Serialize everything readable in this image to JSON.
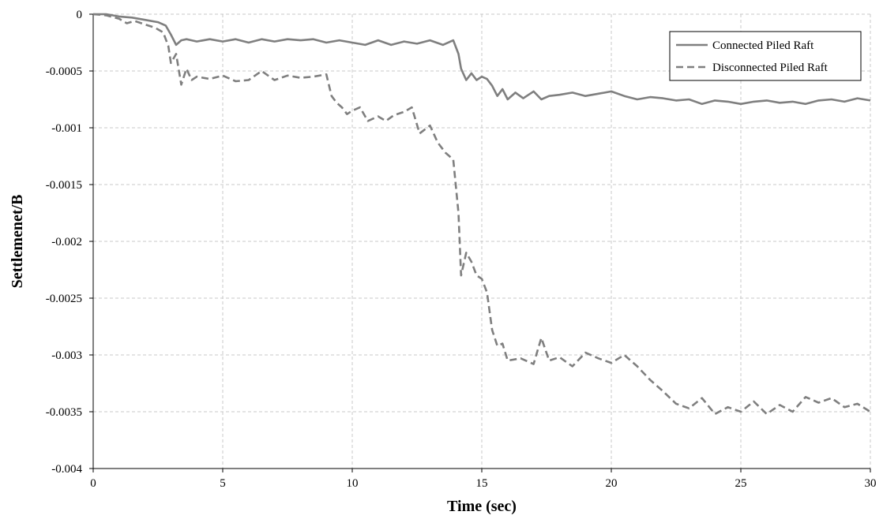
{
  "chart_data": {
    "type": "line",
    "title": "",
    "xlabel": "Time (sec)",
    "ylabel": "Settlemenet/B",
    "xlim": [
      0,
      30
    ],
    "ylim": [
      -0.004,
      0
    ],
    "xticks": [
      0,
      5,
      10,
      15,
      20,
      25,
      30
    ],
    "xtick_labels": [
      "0",
      "5",
      "10",
      "15",
      "20",
      "25",
      "30"
    ],
    "yticks": [
      0,
      -0.0005,
      -0.001,
      -0.0015,
      -0.002,
      -0.0025,
      -0.003,
      -0.0035,
      -0.004
    ],
    "ytick_labels": [
      "0",
      "-0.0005",
      "-0.001",
      "-0.0015",
      "-0.002",
      "-0.0025",
      "-0.003",
      "-0.0035",
      "-0.004"
    ],
    "grid": true,
    "legend_position": "top-right",
    "series": [
      {
        "name": "Connected Piled Raft",
        "style": "solid",
        "color": "#7f7f7f",
        "x": [
          0,
          0.5,
          1.0,
          1.5,
          2.0,
          2.5,
          2.8,
          3.0,
          3.2,
          3.4,
          3.6,
          3.8,
          4.0,
          4.5,
          5.0,
          5.5,
          6.0,
          6.5,
          7.0,
          7.5,
          8.0,
          8.5,
          9.0,
          9.5,
          10.0,
          10.5,
          11.0,
          11.5,
          12.0,
          12.5,
          13.0,
          13.5,
          13.9,
          14.1,
          14.2,
          14.4,
          14.6,
          14.8,
          15.0,
          15.2,
          15.4,
          15.6,
          15.8,
          16.0,
          16.3,
          16.6,
          17.0,
          17.3,
          17.6,
          18.0,
          18.5,
          19.0,
          19.5,
          20.0,
          20.5,
          21.0,
          21.5,
          22.0,
          22.5,
          23.0,
          23.5,
          24.0,
          24.5,
          25.0,
          25.5,
          26.0,
          26.5,
          27.0,
          27.5,
          28.0,
          28.5,
          29.0,
          29.5,
          30.0
        ],
        "y": [
          0,
          0,
          -2e-05,
          -3e-05,
          -5e-05,
          -7e-05,
          -0.0001,
          -0.00018,
          -0.00027,
          -0.00023,
          -0.00022,
          -0.00023,
          -0.00024,
          -0.00022,
          -0.00024,
          -0.00022,
          -0.00025,
          -0.00022,
          -0.00024,
          -0.00022,
          -0.00023,
          -0.00022,
          -0.00025,
          -0.00023,
          -0.00025,
          -0.00027,
          -0.00023,
          -0.00027,
          -0.00024,
          -0.00026,
          -0.00023,
          -0.00027,
          -0.00023,
          -0.00035,
          -0.00048,
          -0.00058,
          -0.00052,
          -0.00058,
          -0.00055,
          -0.00057,
          -0.00063,
          -0.00072,
          -0.00066,
          -0.00075,
          -0.00069,
          -0.00074,
          -0.00068,
          -0.00075,
          -0.00072,
          -0.00071,
          -0.00069,
          -0.00072,
          -0.0007,
          -0.00068,
          -0.00072,
          -0.00075,
          -0.00073,
          -0.00074,
          -0.00076,
          -0.00075,
          -0.00079,
          -0.00076,
          -0.00077,
          -0.00079,
          -0.00077,
          -0.00076,
          -0.00078,
          -0.00077,
          -0.00079,
          -0.00076,
          -0.00075,
          -0.00077,
          -0.00074,
          -0.00076
        ]
      },
      {
        "name": "Disconnected Piled Raft",
        "style": "dashed",
        "color": "#7f7f7f",
        "x": [
          0,
          0.5,
          1.0,
          1.3,
          1.6,
          2.0,
          2.4,
          2.7,
          2.9,
          3.0,
          3.2,
          3.4,
          3.6,
          3.8,
          4.0,
          4.5,
          5.0,
          5.5,
          6.0,
          6.5,
          7.0,
          7.5,
          8.0,
          8.5,
          9.0,
          9.2,
          9.4,
          9.6,
          9.8,
          10.0,
          10.3,
          10.6,
          11.0,
          11.3,
          11.6,
          12.0,
          12.3,
          12.6,
          13.0,
          13.3,
          13.6,
          13.9,
          14.1,
          14.2,
          14.4,
          14.6,
          14.8,
          15.0,
          15.2,
          15.4,
          15.6,
          15.8,
          16.0,
          16.5,
          17.0,
          17.3,
          17.6,
          18.0,
          18.5,
          19.0,
          19.5,
          20.0,
          20.5,
          21.0,
          21.5,
          22.0,
          22.5,
          23.0,
          23.5,
          24.0,
          24.5,
          25.0,
          25.5,
          26.0,
          26.5,
          27.0,
          27.5,
          28.0,
          28.5,
          29.0,
          29.5,
          30.0
        ],
        "y": [
          0,
          -1e-05,
          -4e-05,
          -8e-05,
          -6e-05,
          -9e-05,
          -0.00012,
          -0.00016,
          -0.00028,
          -0.00043,
          -0.00035,
          -0.00062,
          -0.00048,
          -0.00058,
          -0.00055,
          -0.00057,
          -0.00054,
          -0.00059,
          -0.00058,
          -0.0005,
          -0.00058,
          -0.00054,
          -0.00056,
          -0.00055,
          -0.00053,
          -0.00072,
          -0.00078,
          -0.00082,
          -0.00088,
          -0.00085,
          -0.00082,
          -0.00094,
          -0.0009,
          -0.00094,
          -0.00089,
          -0.00086,
          -0.00082,
          -0.00105,
          -0.00098,
          -0.00113,
          -0.00122,
          -0.00128,
          -0.00175,
          -0.0023,
          -0.0021,
          -0.00218,
          -0.0023,
          -0.00233,
          -0.00245,
          -0.00278,
          -0.00292,
          -0.0029,
          -0.00305,
          -0.00303,
          -0.00308,
          -0.00285,
          -0.00305,
          -0.00302,
          -0.0031,
          -0.00298,
          -0.00303,
          -0.00307,
          -0.003,
          -0.0031,
          -0.00322,
          -0.00332,
          -0.00343,
          -0.00347,
          -0.00338,
          -0.00352,
          -0.00346,
          -0.0035,
          -0.00341,
          -0.00352,
          -0.00344,
          -0.0035,
          -0.00337,
          -0.00342,
          -0.00338,
          -0.00346,
          -0.00343,
          -0.0035
        ]
      }
    ]
  }
}
